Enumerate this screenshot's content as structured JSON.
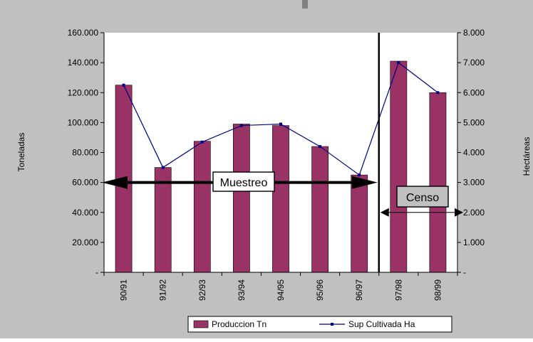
{
  "chart_data": {
    "type": "bar",
    "categories": [
      "90/91",
      "91/92",
      "92/93",
      "93/94",
      "94/95",
      "95/96",
      "96/97",
      "97/98",
      "98/99"
    ],
    "series": [
      {
        "name": "Produccion Tn",
        "type": "bar",
        "axis": "left",
        "color": "#993366",
        "values": [
          125000,
          70000,
          87500,
          99000,
          98000,
          84000,
          65000,
          141000,
          120000
        ]
      },
      {
        "name": "Sup Cultivada Ha",
        "type": "line",
        "axis": "right",
        "color": "#000080",
        "values": [
          6250,
          3500,
          4350,
          4900,
          4950,
          4200,
          3250,
          7000,
          6000
        ]
      }
    ],
    "y_left": {
      "label": "Toneladas",
      "lim": [
        0,
        160000
      ],
      "ticks": [
        0,
        20000,
        40000,
        60000,
        80000,
        100000,
        120000,
        140000,
        160000
      ],
      "tick_labels": [
        "-",
        "20.000",
        "40.000",
        "60.000",
        "80.000",
        "100.000",
        "120.000",
        "140.000",
        "160.000"
      ]
    },
    "y_right": {
      "label": "Hectáreas",
      "lim": [
        0,
        8000
      ],
      "ticks": [
        0,
        1000,
        2000,
        3000,
        4000,
        5000,
        6000,
        7000,
        8000
      ],
      "tick_labels": [
        "-",
        "1.000",
        "2.000",
        "3.000",
        "4.000",
        "5.000",
        "6.000",
        "7.000",
        "8.000"
      ]
    },
    "grid": false,
    "legend_position": "bottom",
    "annotations": {
      "divider_after_category": "96/97",
      "muestreo": {
        "label": "Muestreo",
        "arrow_from": "90/91",
        "arrow_to": "96/97",
        "arrow_y": 60000
      },
      "censo": {
        "label": "Censo",
        "arrow_from": "97/98",
        "arrow_to": "98/99",
        "arrow_y": 40000
      }
    },
    "colors": {
      "background": "#c0c0c0",
      "plot": "#ffffff",
      "bar": "#993366",
      "line": "#000080"
    }
  }
}
